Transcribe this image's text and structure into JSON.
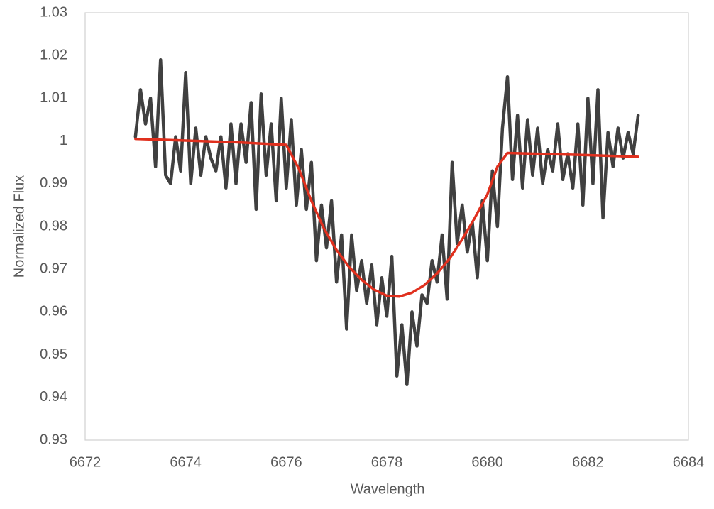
{
  "chart_data": {
    "type": "line",
    "x_label": "Wavelength",
    "y_label": "Normalized Flux",
    "xlim": [
      6672,
      6684
    ],
    "xticks": [
      6672,
      6674,
      6676,
      6678,
      6680,
      6682,
      6684
    ],
    "ylim": [
      0.93,
      1.03
    ],
    "yticks": [
      0.93,
      0.94,
      0.95,
      0.96,
      0.97,
      0.98,
      0.99,
      1,
      1.01,
      1.02,
      1.03
    ],
    "series": [
      {
        "color": "#404040",
        "x": [
          6673.0,
          6673.1,
          6673.2,
          6673.3,
          6673.4,
          6673.5,
          6673.6,
          6673.7,
          6673.8,
          6673.9,
          6674.0,
          6674.1,
          6674.2,
          6674.3,
          6674.4,
          6674.5,
          6674.6,
          6674.7,
          6674.8,
          6674.9,
          6675.0,
          6675.1,
          6675.2,
          6675.3,
          6675.4,
          6675.5,
          6675.6,
          6675.7,
          6675.8,
          6675.9,
          6676.0,
          6676.1,
          6676.2,
          6676.3,
          6676.4,
          6676.5,
          6676.6,
          6676.7,
          6676.8,
          6676.9,
          6677.0,
          6677.1,
          6677.2,
          6677.3,
          6677.4,
          6677.5,
          6677.6,
          6677.7,
          6677.8,
          6677.9,
          6678.0,
          6678.1,
          6678.2,
          6678.3,
          6678.4,
          6678.5,
          6678.6,
          6678.7,
          6678.8,
          6678.9,
          6679.0,
          6679.1,
          6679.2,
          6679.3,
          6679.4,
          6679.5,
          6679.6,
          6679.7,
          6679.8,
          6679.9,
          6680.0,
          6680.1,
          6680.2,
          6680.3,
          6680.4,
          6680.5,
          6680.6,
          6680.7,
          6680.8,
          6680.9,
          6681.0,
          6681.1,
          6681.2,
          6681.3,
          6681.4,
          6681.5,
          6681.6,
          6681.7,
          6681.8,
          6681.9,
          6682.0,
          6682.1,
          6682.2,
          6682.3,
          6682.4,
          6682.5,
          6682.6,
          6682.7,
          6682.8,
          6682.9,
          6683.0
        ],
        "values": [
          1.001,
          1.012,
          1.004,
          1.01,
          0.994,
          1.019,
          0.992,
          0.99,
          1.001,
          0.993,
          1.016,
          0.99,
          1.003,
          0.992,
          1.001,
          0.996,
          0.993,
          1.001,
          0.989,
          1.004,
          0.99,
          1.004,
          0.995,
          1.009,
          0.984,
          1.011,
          0.992,
          1.004,
          0.986,
          1.01,
          0.989,
          1.005,
          0.985,
          0.998,
          0.984,
          0.995,
          0.972,
          0.985,
          0.975,
          0.986,
          0.967,
          0.978,
          0.956,
          0.978,
          0.965,
          0.972,
          0.962,
          0.971,
          0.957,
          0.968,
          0.959,
          0.973,
          0.945,
          0.957,
          0.943,
          0.96,
          0.952,
          0.964,
          0.962,
          0.972,
          0.967,
          0.978,
          0.963,
          0.995,
          0.976,
          0.985,
          0.974,
          0.981,
          0.968,
          0.986,
          0.972,
          0.993,
          0.98,
          1.003,
          1.015,
          0.991,
          1.006,
          0.989,
          1.005,
          0.992,
          1.003,
          0.99,
          0.998,
          0.993,
          1.004,
          0.991,
          0.997,
          0.989,
          1.004,
          0.985,
          1.01,
          0.99,
          1.012,
          0.982,
          1.002,
          0.994,
          1.003,
          0.996,
          1.002,
          0.997,
          1.006
        ]
      },
      {
        "color": "#e0301e",
        "x": [
          6673.0,
          6674.0,
          6675.0,
          6676.0,
          6676.25,
          6676.5,
          6676.75,
          6677.0,
          6677.25,
          6677.5,
          6677.75,
          6678.0,
          6678.25,
          6678.5,
          6678.75,
          6679.0,
          6679.25,
          6679.5,
          6679.75,
          6680.0,
          6680.2,
          6680.4,
          6681.0,
          6682.0,
          6683.0
        ],
        "values": [
          1.0005,
          1.0001,
          0.9997,
          0.9991,
          0.9935,
          0.986,
          0.9795,
          0.9745,
          0.9705,
          0.9675,
          0.9652,
          0.9638,
          0.9636,
          0.9645,
          0.9663,
          0.969,
          0.9725,
          0.977,
          0.982,
          0.9875,
          0.994,
          0.9972,
          0.997,
          0.9967,
          0.9963
        ]
      }
    ]
  }
}
